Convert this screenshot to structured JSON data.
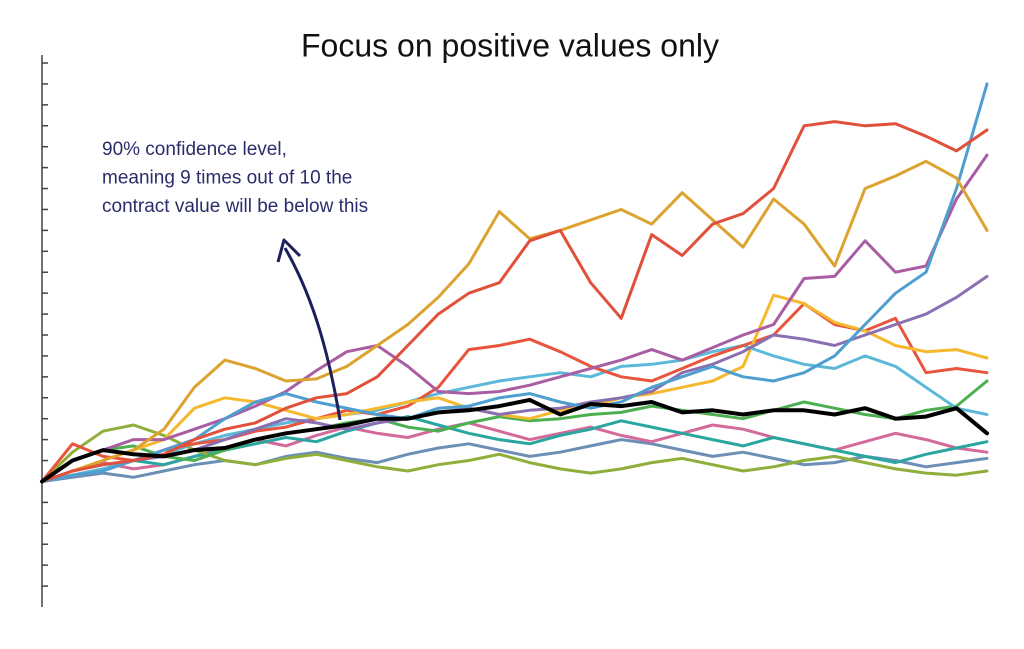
{
  "chart_data": {
    "type": "line",
    "title": "Focus on positive values only",
    "annotation": [
      "90% confidence level,",
      "meaning 9 times out of 10 the",
      "contract value will be below this"
    ],
    "x": [
      0,
      1,
      2,
      3,
      4,
      5,
      6,
      7,
      8,
      9,
      10,
      11,
      12,
      13,
      14,
      15,
      16,
      17,
      18,
      19,
      20,
      21,
      22,
      23,
      24,
      25,
      26,
      27,
      28,
      29,
      30,
      31
    ],
    "xlim": [
      0,
      31
    ],
    "ylim": [
      -6,
      20
    ],
    "yticks": [
      -5,
      -4,
      -3,
      -2,
      -1,
      0,
      1,
      2,
      3,
      4,
      5,
      6,
      7,
      8,
      9,
      10,
      11,
      12,
      13,
      14,
      15,
      16,
      17,
      18,
      19,
      20
    ],
    "series": [
      {
        "color": "#6b8fb5",
        "values": [
          0,
          0.2,
          0.4,
          0.2,
          0.5,
          0.8,
          1,
          0.8,
          1.2,
          1.4,
          1.1,
          0.9,
          1.3,
          1.6,
          1.8,
          1.5,
          1.2,
          1.4,
          1.7,
          2,
          1.8,
          1.5,
          1.2,
          1.4,
          1.1,
          0.8,
          0.9,
          1.2,
          1,
          0.7,
          0.9,
          1.1
        ]
      },
      {
        "color": "#d46a9a",
        "values": [
          0,
          0.5,
          0.9,
          0.6,
          0.8,
          1.2,
          1.6,
          2,
          1.7,
          2.2,
          2.6,
          2.3,
          2.1,
          2.5,
          2.8,
          2.4,
          2,
          2.3,
          2.6,
          2.2,
          1.9,
          2.3,
          2.7,
          2.5,
          2.1,
          1.8,
          1.5,
          1.9,
          2.3,
          2,
          1.6,
          1.4
        ]
      },
      {
        "color": "#2aa6a0",
        "values": [
          0,
          0.3,
          0.6,
          1,
          0.8,
          1.2,
          1.5,
          1.8,
          2.1,
          1.9,
          2.4,
          2.8,
          3.1,
          2.7,
          2.3,
          2,
          1.8,
          2.2,
          2.5,
          2.9,
          2.6,
          2.3,
          2,
          1.7,
          2.1,
          1.8,
          1.5,
          1.2,
          0.9,
          1.3,
          1.6,
          1.9
        ]
      },
      {
        "color": "#8fae3a",
        "values": [
          0,
          1.4,
          2.4,
          2.7,
          2.2,
          1.5,
          1,
          0.8,
          1.1,
          1.3,
          1,
          0.7,
          0.5,
          0.8,
          1,
          1.3,
          0.9,
          0.6,
          0.4,
          0.6,
          0.9,
          1.1,
          0.8,
          0.5,
          0.7,
          1,
          1.2,
          0.9,
          0.6,
          0.4,
          0.3,
          0.5
        ]
      },
      {
        "color": "#4caf50",
        "values": [
          0,
          1,
          1.5,
          1.7,
          1.2,
          1,
          1.5,
          2,
          2.3,
          2.5,
          2.8,
          3,
          2.6,
          2.4,
          2.8,
          3.1,
          2.9,
          3,
          3.2,
          3.3,
          3.6,
          3.4,
          3.2,
          3,
          3.4,
          3.8,
          3.5,
          3.2,
          3,
          3.4,
          3.6,
          4.8
        ]
      },
      {
        "color": "#5bb8d8",
        "values": [
          0,
          0.3,
          0.6,
          1,
          1.3,
          1.8,
          2.2,
          2.5,
          2.8,
          3,
          3.2,
          3.4,
          3.8,
          4.2,
          4.5,
          4.8,
          5,
          5.2,
          5,
          5.5,
          5.6,
          5.8,
          6.2,
          6.5,
          6,
          5.6,
          5.4,
          6,
          5.5,
          4.5,
          3.5,
          3.2
        ]
      },
      {
        "color": "#e8553c",
        "values": [
          0,
          1.8,
          1.2,
          1,
          1.5,
          1.8,
          2,
          2.4,
          2.6,
          3,
          3.4,
          3.2,
          3.6,
          4.5,
          6.3,
          6.5,
          6.8,
          6.2,
          5.5,
          5,
          4.8,
          5.4,
          6,
          6.5,
          7,
          8.5,
          7.5,
          7.2,
          7.8,
          5.2,
          5.4,
          5.2
        ]
      },
      {
        "color": "#f5b82e",
        "values": [
          0,
          0.5,
          1,
          1.5,
          2,
          3.5,
          4,
          3.8,
          3.4,
          3,
          3.2,
          3.5,
          3.8,
          4,
          3.5,
          3.2,
          3,
          3.4,
          3.6,
          4,
          4.2,
          4.5,
          4.8,
          5.5,
          8.9,
          8.5,
          7.6,
          7.2,
          6.5,
          6.2,
          6.3,
          5.9
        ]
      },
      {
        "color": "#8a6fb3",
        "values": [
          0,
          0.5,
          0.8,
          1,
          1.2,
          1.5,
          2,
          2.5,
          3,
          2.8,
          2.5,
          2.8,
          3,
          3.3,
          3.5,
          3.2,
          3.4,
          3.5,
          3.8,
          4,
          4.3,
          5.2,
          5.6,
          6.2,
          7,
          6.8,
          6.5,
          7,
          7.5,
          8,
          8.8,
          9.8
        ]
      },
      {
        "color": "#a95ea3",
        "values": [
          0,
          1,
          1.5,
          2,
          2,
          2.5,
          3,
          3.6,
          4.3,
          5.3,
          6.2,
          6.5,
          5.5,
          4.3,
          4.2,
          4.3,
          4.6,
          5,
          5.4,
          5.8,
          6.3,
          5.8,
          6.4,
          7,
          7.5,
          9.7,
          9.8,
          11.5,
          10,
          10.3,
          13.5,
          15.6
        ]
      },
      {
        "color": "#4e9ed0",
        "values": [
          0,
          0.3,
          0.5,
          1,
          1.5,
          2,
          3,
          3.8,
          4.2,
          3.8,
          3.5,
          3.2,
          3,
          3.5,
          3.6,
          4,
          4.2,
          3.8,
          3.5,
          3.8,
          4.5,
          5,
          5.5,
          5,
          4.8,
          5.2,
          6,
          7.5,
          9,
          10,
          14,
          19
        ]
      },
      {
        "color": "#dca32e",
        "values": [
          0,
          0.5,
          1,
          1.5,
          2.5,
          4.5,
          5.8,
          5.4,
          4.8,
          4.9,
          5.5,
          6.5,
          7.5,
          8.8,
          10.4,
          12.9,
          11.6,
          12,
          12.5,
          13,
          12.3,
          13.8,
          12.5,
          11.2,
          13.5,
          12.3,
          10.3,
          14,
          14.6,
          15.3,
          14.5,
          12
        ]
      },
      {
        "color": "#e0503a",
        "values": [
          0,
          0.5,
          0.8,
          1,
          1.3,
          2,
          2.5,
          2.8,
          3.5,
          4,
          4.2,
          5,
          6.5,
          8,
          9,
          9.5,
          11.5,
          12,
          9.5,
          7.8,
          11.8,
          10.8,
          12.3,
          12.8,
          14,
          17,
          17.2,
          17,
          17.1,
          16.5,
          15.8,
          16.8
        ]
      },
      {
        "color": "#000000",
        "line_width": 4,
        "values": [
          0,
          1,
          1.5,
          1.3,
          1.2,
          1.5,
          1.6,
          2,
          2.3,
          2.5,
          2.7,
          3,
          3,
          3.3,
          3.4,
          3.6,
          3.9,
          3.2,
          3.7,
          3.6,
          3.8,
          3.3,
          3.4,
          3.2,
          3.4,
          3.4,
          3.2,
          3.5,
          3,
          3.1,
          3.5,
          2.3
        ]
      }
    ]
  }
}
